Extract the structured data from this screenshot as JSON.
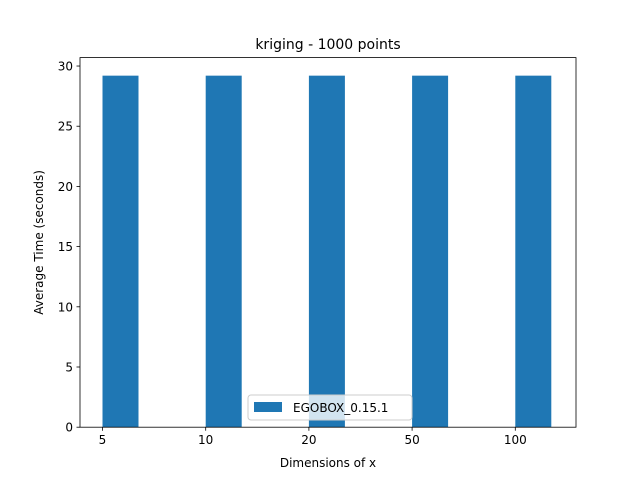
{
  "chart_data": {
    "type": "bar",
    "title": "kriging - 1000 points",
    "xlabel": "Dimensions of x",
    "ylabel": "Average Time (seconds)",
    "categories": [
      "5",
      "10",
      "20",
      "50",
      "100"
    ],
    "series": [
      {
        "name": "EGOBOX_0.15.1",
        "values": [
          29.2,
          29.2,
          29.2,
          29.2,
          29.2
        ],
        "color": "#1f77b4"
      }
    ],
    "ylim": [
      0,
      30.7
    ],
    "yticks": [
      0,
      5,
      10,
      15,
      20,
      25,
      30
    ],
    "grid": false,
    "legend_position": "lower center"
  }
}
